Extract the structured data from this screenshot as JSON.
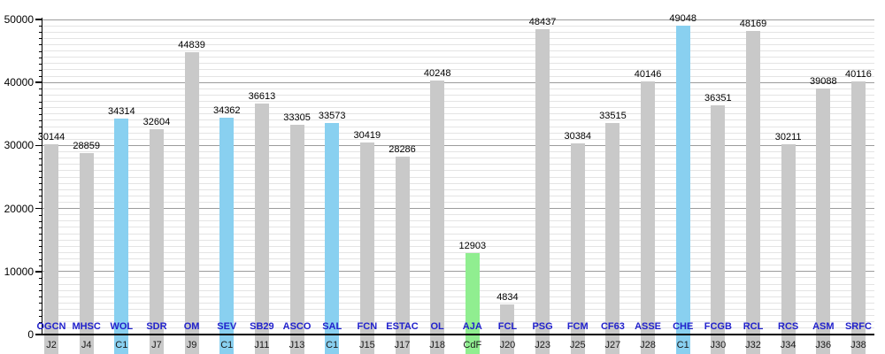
{
  "chart_data": {
    "type": "bar",
    "title": "",
    "xlabel": "",
    "ylabel": "",
    "ylim": [
      0,
      50000
    ],
    "y_major_ticks": [
      0,
      10000,
      20000,
      30000,
      40000,
      50000
    ],
    "y_tick_labels": [
      "0",
      "10000",
      "20000",
      "30000",
      "40000",
      "50000"
    ],
    "y_minor_step": 1000,
    "grid": true,
    "legend": null,
    "colors": {
      "bar_default": "#c9c9c9",
      "bar_c1": "#89d0f0",
      "bar_cdf": "#90ee90",
      "team_label": "#2121cc",
      "match_label": "#1a1a1a",
      "value_label": "#000000",
      "grid_minor": "#e4e4e4",
      "grid_major": "#9c9c9c",
      "axis": "#000000"
    },
    "bars": [
      {
        "team": "OGCN",
        "match": "J2",
        "value": 30144,
        "color_key": "bar_default"
      },
      {
        "team": "MHSC",
        "match": "J4",
        "value": 28859,
        "color_key": "bar_default"
      },
      {
        "team": "WOL",
        "match": "C1",
        "value": 34314,
        "color_key": "bar_c1"
      },
      {
        "team": "SDR",
        "match": "J7",
        "value": 32604,
        "color_key": "bar_default"
      },
      {
        "team": "OM",
        "match": "J9",
        "value": 44839,
        "color_key": "bar_default"
      },
      {
        "team": "SEV",
        "match": "C1",
        "value": 34362,
        "color_key": "bar_c1"
      },
      {
        "team": "SB29",
        "match": "J11",
        "value": 36613,
        "color_key": "bar_default"
      },
      {
        "team": "ASCO",
        "match": "J13",
        "value": 33305,
        "color_key": "bar_default"
      },
      {
        "team": "SAL",
        "match": "C1",
        "value": 33573,
        "color_key": "bar_c1"
      },
      {
        "team": "FCN",
        "match": "J15",
        "value": 30419,
        "color_key": "bar_default"
      },
      {
        "team": "ESTAC",
        "match": "J17",
        "value": 28286,
        "color_key": "bar_default"
      },
      {
        "team": "OL",
        "match": "J18",
        "value": 40248,
        "color_key": "bar_default"
      },
      {
        "team": "AJA",
        "match": "CdF",
        "value": 12903,
        "color_key": "bar_cdf"
      },
      {
        "team": "FCL",
        "match": "J20",
        "value": 4834,
        "color_key": "bar_default"
      },
      {
        "team": "PSG",
        "match": "J23",
        "value": 48437,
        "color_key": "bar_default"
      },
      {
        "team": "FCM",
        "match": "J25",
        "value": 30384,
        "color_key": "bar_default"
      },
      {
        "team": "CF63",
        "match": "J27",
        "value": 33515,
        "color_key": "bar_default"
      },
      {
        "team": "ASSE",
        "match": "J28",
        "value": 40146,
        "color_key": "bar_default"
      },
      {
        "team": "CHE",
        "match": "C1",
        "value": 49048,
        "color_key": "bar_c1"
      },
      {
        "team": "FCGB",
        "match": "J30",
        "value": 36351,
        "color_key": "bar_default"
      },
      {
        "team": "RCL",
        "match": "J32",
        "value": 48169,
        "color_key": "bar_default"
      },
      {
        "team": "RCS",
        "match": "J34",
        "value": 30211,
        "color_key": "bar_default"
      },
      {
        "team": "ASM",
        "match": "J36",
        "value": 39088,
        "color_key": "bar_default"
      },
      {
        "team": "SRFC",
        "match": "J38",
        "value": 40116,
        "color_key": "bar_default"
      }
    ]
  }
}
